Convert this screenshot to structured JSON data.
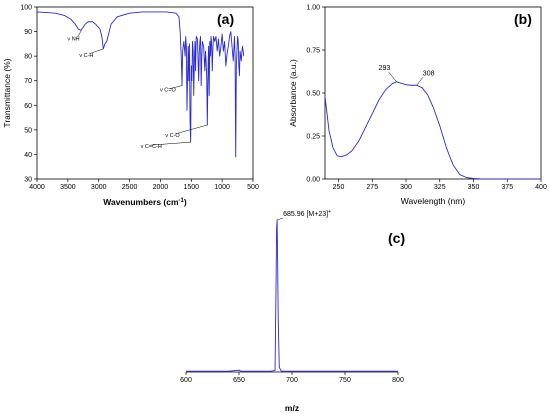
{
  "chart_data": [
    {
      "type": "line",
      "panel_letter": "(a)",
      "xlabel": "Wavenumbers (cm",
      "xlabel_sup": "-1",
      "xlabel_end": ")",
      "ylabel": "Transmittance (%)",
      "xlim": [
        4000,
        500
      ],
      "ylim": [
        30,
        100
      ],
      "xticks": [
        "4000",
        "3500",
        "3000",
        "2500",
        "2000",
        "1500",
        "1000",
        "500"
      ],
      "yticks": [
        "30",
        "40",
        "50",
        "60",
        "70",
        "80",
        "90",
        "100"
      ],
      "color": "#2a2ad6",
      "x": [
        4000,
        3700,
        3550,
        3450,
        3380,
        3330,
        3290,
        3260,
        3220,
        3170,
        3100,
        3050,
        2980,
        2950,
        2925,
        2900,
        2870,
        2850,
        2800,
        2700,
        2500,
        2300,
        2100,
        1900,
        1750,
        1700,
        1680,
        1660,
        1650,
        1640,
        1620,
        1600,
        1590,
        1580,
        1570,
        1560,
        1550,
        1540,
        1530,
        1520,
        1510,
        1500,
        1490,
        1480,
        1470,
        1460,
        1450,
        1440,
        1430,
        1420,
        1400,
        1380,
        1370,
        1360,
        1350,
        1340,
        1330,
        1320,
        1300,
        1280,
        1270,
        1260,
        1250,
        1240,
        1230,
        1220,
        1210,
        1200,
        1190,
        1180,
        1170,
        1160,
        1150,
        1140,
        1120,
        1100,
        1080,
        1060,
        1040,
        1020,
        1000,
        980,
        960,
        940,
        920,
        900,
        880,
        860,
        840,
        820,
        800,
        790,
        780,
        770,
        760,
        750,
        740,
        730,
        720,
        710,
        700,
        690,
        680,
        670,
        660,
        650
      ],
      "y": [
        98,
        97.5,
        96.5,
        95,
        93,
        91,
        90.5,
        91.5,
        93,
        94,
        94,
        93,
        91,
        88,
        83,
        85,
        86,
        88,
        93,
        96,
        97.5,
        98,
        98,
        98,
        97.5,
        96,
        90,
        78,
        68,
        82,
        86,
        80,
        88,
        84,
        58,
        72,
        84,
        70,
        85,
        54,
        45,
        76,
        70,
        86,
        82,
        64,
        78,
        86,
        74,
        88,
        87,
        70,
        82,
        86,
        88,
        68,
        80,
        86,
        84,
        74,
        82,
        78,
        71,
        52,
        72,
        84,
        64,
        86,
        80,
        88,
        85,
        74,
        83,
        88,
        86,
        88,
        82,
        87,
        80,
        84,
        89,
        82,
        86,
        76,
        81,
        84,
        88,
        90,
        84,
        78,
        88,
        80,
        39,
        76,
        82,
        88,
        86,
        76,
        72,
        82,
        80,
        78,
        82,
        84,
        82,
        80
      ],
      "annotations": [
        {
          "text": "ν NH",
          "x": 3280,
          "y": 90.5
        },
        {
          "text": "ν C-H",
          "x": 2925,
          "y": 83
        },
        {
          "text": "ν C=O",
          "x": 1650,
          "y": 68
        },
        {
          "text": "ν C=C-H",
          "x": 1510,
          "y": 45
        },
        {
          "text": "ν C-O",
          "x": 1240,
          "y": 52
        }
      ]
    },
    {
      "type": "line",
      "panel_letter": "(b)",
      "xlabel": "Wavelength (nm)",
      "ylabel": "Absorbance (a.u.)",
      "xlim": [
        240,
        400
      ],
      "ylim": [
        0,
        1.0
      ],
      "xticks": [
        "250",
        "275",
        "300",
        "325",
        "350",
        "375",
        "400"
      ],
      "yticks": [
        "0.00",
        "0.25",
        "0.50",
        "0.75",
        "1.00"
      ],
      "color": "#2a2ad6",
      "x": [
        240,
        243,
        246,
        249,
        252,
        256,
        260,
        265,
        270,
        275,
        280,
        285,
        290,
        293,
        296,
        300,
        304,
        308,
        312,
        316,
        320,
        325,
        330,
        335,
        340,
        345,
        350,
        355,
        360,
        370,
        380,
        390,
        400
      ],
      "y": [
        0.48,
        0.28,
        0.18,
        0.135,
        0.13,
        0.14,
        0.165,
        0.22,
        0.3,
        0.38,
        0.46,
        0.52,
        0.555,
        0.565,
        0.558,
        0.548,
        0.545,
        0.545,
        0.53,
        0.49,
        0.42,
        0.31,
        0.18,
        0.08,
        0.025,
        0.008,
        0.003,
        0.001,
        0.0,
        0.0,
        0.0,
        0.0,
        0.0
      ],
      "annotations": [
        {
          "text": "293",
          "x": 293,
          "y": 0.565
        },
        {
          "text": "308",
          "x": 308,
          "y": 0.545
        }
      ]
    },
    {
      "type": "line",
      "panel_letter": "(c)",
      "xlabel": "m/z",
      "xlim": [
        600,
        800
      ],
      "ylim": [
        0,
        1.0
      ],
      "xticks": [
        "600",
        "650",
        "700",
        "750",
        "800"
      ],
      "color": "#2a2ad6",
      "x": [
        600,
        640,
        650,
        652,
        660,
        680,
        684,
        685,
        685.5,
        685.96,
        686.5,
        687,
        688,
        690,
        700,
        750,
        800
      ],
      "y": [
        0.005,
        0.005,
        0.012,
        0.005,
        0.005,
        0.005,
        0.01,
        0.6,
        0.95,
        1.0,
        0.7,
        0.35,
        0.03,
        0.005,
        0.005,
        0.005,
        0.005
      ],
      "annotations": [
        {
          "text": "685.96  [M+23]",
          "sup": "+",
          "x": 685.96,
          "y": 1.0
        }
      ]
    }
  ]
}
